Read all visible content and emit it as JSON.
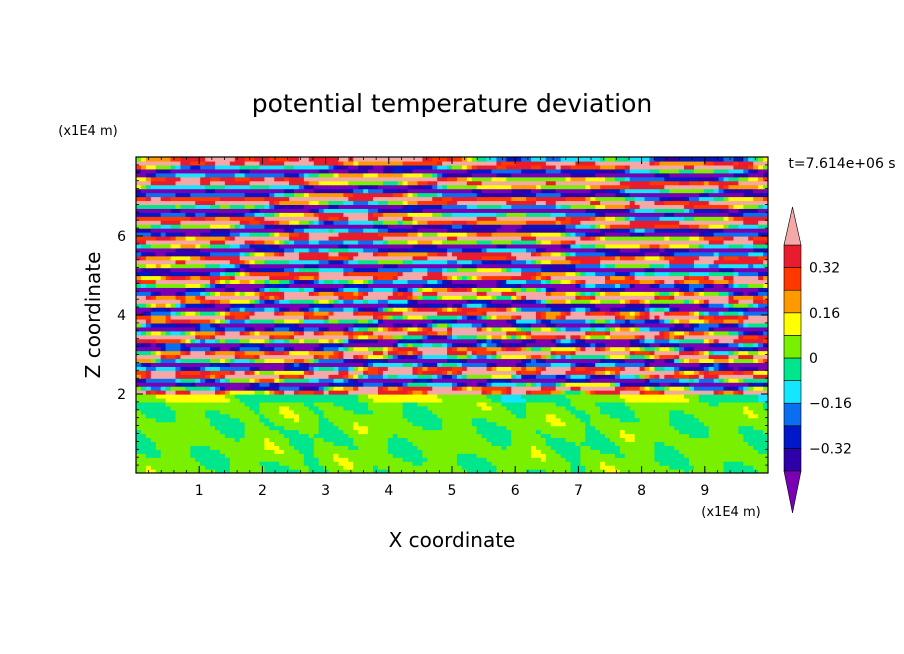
{
  "chart_data": {
    "type": "heatmap",
    "title": "potential temperature deviation",
    "xlabel": "X coordinate",
    "ylabel": "Z coordinate",
    "x_unit": "(x1E4 m)",
    "y_unit": "(x1E4 m)",
    "time_label": "t=7.614e+06 s",
    "xlim": [
      0,
      10
    ],
    "ylim": [
      0,
      8
    ],
    "x_ticks": [
      1,
      2,
      3,
      4,
      5,
      6,
      7,
      8,
      9
    ],
    "y_ticks": [
      2,
      4,
      6
    ],
    "colorbar": {
      "levels": [
        -0.4,
        -0.32,
        -0.24,
        -0.16,
        -0.08,
        0,
        0.08,
        0.16,
        0.24,
        0.32,
        0.4
      ],
      "labeled_levels": [
        0.32,
        0.16,
        0,
        -0.16,
        -0.32
      ],
      "tick_labels": [
        "0.32",
        "0.16",
        "0",
        "−0.16",
        "−0.32"
      ],
      "colors": [
        "#7a00b4",
        "#2d00aa",
        "#0018c8",
        "#0a6ef0",
        "#14e6ff",
        "#00e68c",
        "#78f000",
        "#ffff00",
        "#ff9900",
        "#ff3800",
        "#e81c2c",
        "#f5a8a8"
      ],
      "extend": "both"
    },
    "field_description_rows": [
      {
        "z": 7.9,
        "band": "pink"
      },
      {
        "z": 7.4,
        "band": "purple"
      },
      {
        "z": 7.0,
        "band": "pink"
      },
      {
        "z": 6.5,
        "band": "purple"
      },
      {
        "z": 6.1,
        "band": "pink"
      },
      {
        "z": 5.6,
        "band": "purple"
      },
      {
        "z": 5.2,
        "band": "pink"
      },
      {
        "z": 4.8,
        "band": "mixed"
      },
      {
        "z": 4.3,
        "band": "pink"
      },
      {
        "z": 3.9,
        "band": "purple"
      },
      {
        "z": 3.4,
        "band": "mixed"
      },
      {
        "z": 2.9,
        "band": "mixed"
      },
      {
        "z": 2.4,
        "band": "mixed"
      },
      {
        "z": 2.0,
        "band": "yellow-green"
      },
      {
        "z": 1.0,
        "band": "green"
      }
    ]
  }
}
